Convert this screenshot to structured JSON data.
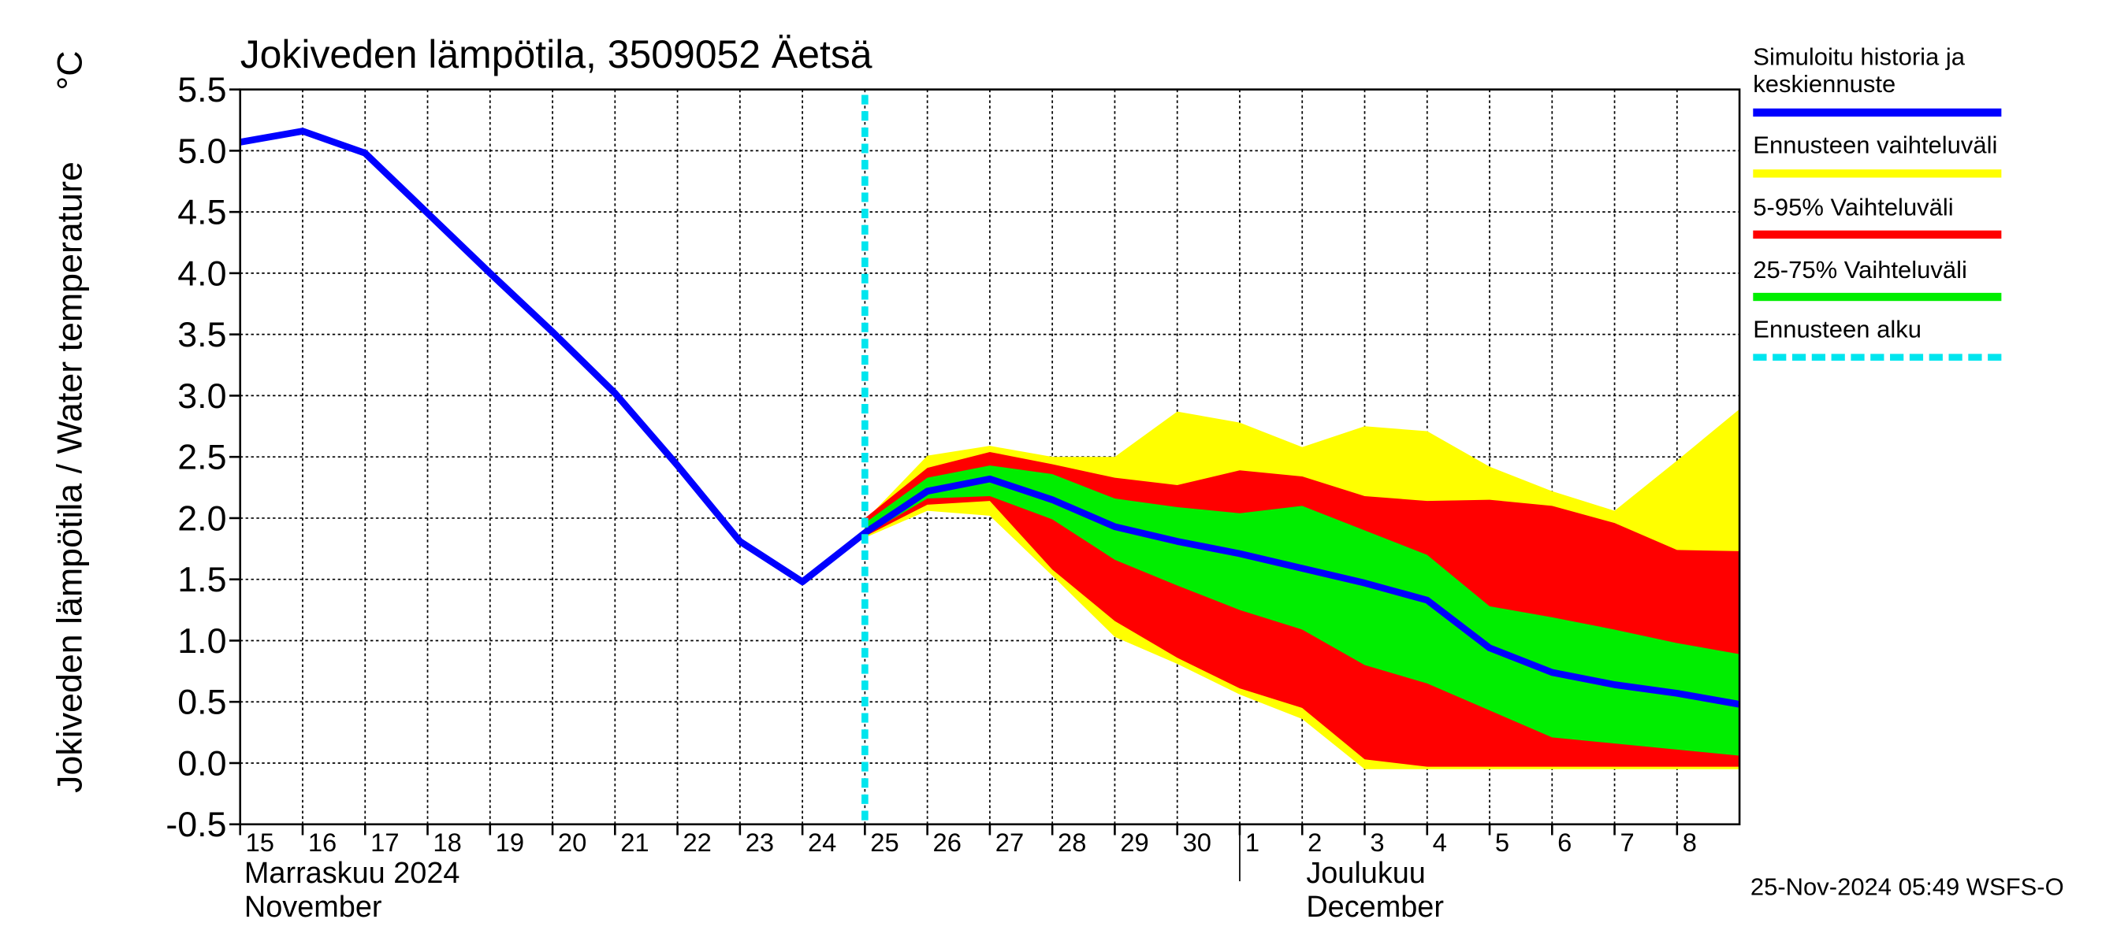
{
  "chart_data": {
    "type": "band-line",
    "title": "Jokiveden lämpötila, 3509052 Äetsä",
    "y_label": "Jokiveden lämpötila / Water temperature",
    "y_unit": "°C",
    "timestamp": "25-Nov-2024 05:49 WSFS-O",
    "x": [
      0,
      1,
      2,
      3,
      4,
      5,
      6,
      7,
      8,
      9,
      10,
      11,
      12,
      13,
      14,
      15,
      16,
      17,
      18,
      19,
      20,
      21,
      22,
      23,
      24
    ],
    "xlim": [
      0,
      24
    ],
    "xticks": [
      {
        "value": 0,
        "label": "15"
      },
      {
        "value": 1,
        "label": "16"
      },
      {
        "value": 2,
        "label": "17"
      },
      {
        "value": 3,
        "label": "18"
      },
      {
        "value": 4,
        "label": "19"
      },
      {
        "value": 5,
        "label": "20"
      },
      {
        "value": 6,
        "label": "21"
      },
      {
        "value": 7,
        "label": "22"
      },
      {
        "value": 8,
        "label": "23"
      },
      {
        "value": 9,
        "label": "24"
      },
      {
        "value": 10,
        "label": "25"
      },
      {
        "value": 11,
        "label": "26"
      },
      {
        "value": 12,
        "label": "27"
      },
      {
        "value": 13,
        "label": "28"
      },
      {
        "value": 14,
        "label": "29"
      },
      {
        "value": 15,
        "label": "30"
      },
      {
        "value": 16,
        "label": "1"
      },
      {
        "value": 17,
        "label": "2"
      },
      {
        "value": 18,
        "label": "3"
      },
      {
        "value": 19,
        "label": "4"
      },
      {
        "value": 20,
        "label": "5"
      },
      {
        "value": 21,
        "label": "6"
      },
      {
        "value": 22,
        "label": "7"
      },
      {
        "value": 23,
        "label": "8"
      }
    ],
    "months": [
      {
        "x": 0,
        "label": "Marraskuu 2024",
        "sublabel": "November"
      },
      {
        "x": 16,
        "label": "Joulukuu",
        "sublabel": "December"
      }
    ],
    "ylim": [
      -0.5,
      5.5
    ],
    "yticks": [
      {
        "value": -0.5,
        "label": "-0.5"
      },
      {
        "value": 0,
        "label": "0.0"
      },
      {
        "value": 0.5,
        "label": "0.5"
      },
      {
        "value": 1,
        "label": "1.0"
      },
      {
        "value": 1.5,
        "label": "1.5"
      },
      {
        "value": 2,
        "label": "2.0"
      },
      {
        "value": 2.5,
        "label": "2.5"
      },
      {
        "value": 3,
        "label": "3.0"
      },
      {
        "value": 3.5,
        "label": "3.5"
      },
      {
        "value": 4,
        "label": "4.0"
      },
      {
        "value": 4.5,
        "label": "4.5"
      },
      {
        "value": 5,
        "label": "5.0"
      },
      {
        "value": 5.5,
        "label": "5.5"
      }
    ],
    "grid": true,
    "series": [
      {
        "name": "Simuloitu historia ja keskiennuste",
        "color": "#0000ff",
        "kind": "line",
        "values": [
          5.07,
          5.16,
          4.98,
          4.49,
          4.0,
          3.52,
          3.02,
          2.43,
          1.81,
          1.48,
          1.88,
          2.22,
          2.32,
          2.15,
          1.93,
          1.81,
          1.71,
          1.59,
          1.47,
          1.33,
          0.94,
          0.74,
          0.64,
          0.57,
          0.48
        ]
      },
      {
        "name": "Ennusteen vaihteluväli",
        "color": "#ffff00",
        "kind": "band",
        "upper": [
          null,
          null,
          null,
          null,
          null,
          null,
          null,
          null,
          null,
          null,
          1.98,
          2.51,
          2.59,
          2.5,
          2.5,
          2.87,
          2.78,
          2.58,
          2.75,
          2.71,
          2.42,
          2.22,
          2.06,
          2.47,
          2.89
        ],
        "lower": [
          null,
          null,
          null,
          null,
          null,
          null,
          null,
          null,
          null,
          null,
          1.84,
          2.06,
          2.02,
          1.53,
          1.03,
          0.81,
          0.56,
          0.36,
          -0.05,
          -0.05,
          -0.05,
          -0.05,
          -0.05,
          -0.05,
          -0.05
        ]
      },
      {
        "name": "5-95% Vaihteluväli",
        "color": "#ff0000",
        "kind": "band",
        "upper": [
          null,
          null,
          null,
          null,
          null,
          null,
          null,
          null,
          null,
          null,
          2.0,
          2.41,
          2.54,
          2.44,
          2.33,
          2.27,
          2.39,
          2.34,
          2.18,
          2.14,
          2.15,
          2.1,
          1.96,
          1.74,
          1.73
        ],
        "lower": [
          null,
          null,
          null,
          null,
          null,
          null,
          null,
          null,
          null,
          null,
          1.85,
          2.11,
          2.14,
          1.58,
          1.16,
          0.86,
          0.61,
          0.45,
          0.03,
          -0.03,
          -0.03,
          -0.03,
          -0.03,
          -0.03,
          -0.03
        ]
      },
      {
        "name": "25-75% Vaihteluväli",
        "color": "#00ee00",
        "kind": "band",
        "upper": [
          null,
          null,
          null,
          null,
          null,
          null,
          null,
          null,
          null,
          null,
          1.96,
          2.33,
          2.43,
          2.36,
          2.16,
          2.09,
          2.04,
          2.1,
          1.9,
          1.7,
          1.28,
          1.19,
          1.09,
          0.98,
          0.89
        ],
        "lower": [
          null,
          null,
          null,
          null,
          null,
          null,
          null,
          null,
          null,
          null,
          1.86,
          2.16,
          2.18,
          1.99,
          1.66,
          1.45,
          1.25,
          1.09,
          0.8,
          0.65,
          0.43,
          0.21,
          0.16,
          0.11,
          0.06
        ]
      },
      {
        "name": "Ennusteen alku",
        "color": "#00e5ee",
        "kind": "vline",
        "x": 10
      }
    ]
  }
}
